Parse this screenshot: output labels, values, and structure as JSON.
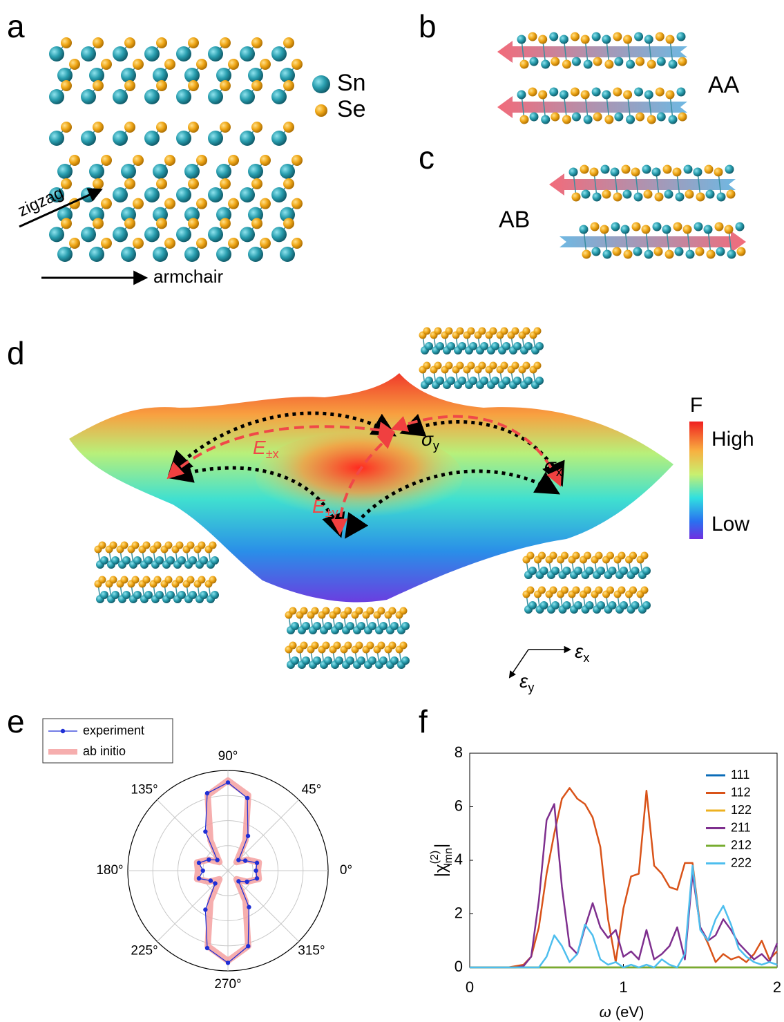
{
  "panels": {
    "labels": [
      "a",
      "b",
      "c",
      "d",
      "e",
      "f"
    ],
    "a": {
      "elements": [
        "Sn",
        "Se"
      ],
      "zigzag": "zigzag",
      "armchair": "armchair"
    },
    "b": {
      "stacking": "AA"
    },
    "c": {
      "stacking": "AB"
    },
    "d": {
      "colorbar_title": "F",
      "high": "High",
      "low": "Low",
      "E_x": {
        "symbol": "E",
        "sub": "±x"
      },
      "E_y": {
        "symbol": "E",
        "sub": "±y"
      },
      "sigma_y": {
        "symbol": "σ",
        "sub": "y"
      },
      "sigma_x": {
        "symbol": "σ",
        "sub": "x"
      },
      "eps_x": {
        "symbol": "ε",
        "sub": "x"
      },
      "eps_y": {
        "symbol": "ε",
        "sub": "y"
      }
    }
  },
  "chart_data": [
    {
      "type": "polar",
      "rlim": [
        0,
        1
      ],
      "thetaticks": [
        {
          "value": 0,
          "label": "0°"
        },
        {
          "value": 45,
          "label": "45°"
        },
        {
          "value": 90,
          "label": "90°"
        },
        {
          "value": 135,
          "label": "135°"
        },
        {
          "value": 180,
          "label": "180°"
        },
        {
          "value": 225,
          "label": "225°"
        },
        {
          "value": 270,
          "label": "270°"
        },
        {
          "value": 315,
          "label": "315°"
        }
      ],
      "series": [
        {
          "name": "experiment",
          "color": "#1f2fd6",
          "markers": true,
          "theta": [
            0,
            15,
            30,
            45,
            60,
            75,
            90,
            105,
            120,
            135,
            150,
            165,
            180,
            195,
            210,
            225,
            240,
            255,
            270,
            285,
            300,
            315,
            330,
            345
          ],
          "r": [
            0.28,
            0.3,
            0.2,
            0.15,
            0.4,
            0.75,
            0.88,
            0.8,
            0.45,
            0.15,
            0.22,
            0.3,
            0.25,
            0.3,
            0.2,
            0.18,
            0.45,
            0.8,
            0.92,
            0.78,
            0.42,
            0.15,
            0.22,
            0.3
          ]
        },
        {
          "name": "ab initio",
          "color": "#f4a0a0",
          "markers": false,
          "theta": [
            0,
            15,
            30,
            45,
            60,
            75,
            90,
            105,
            120,
            135,
            150,
            165,
            180,
            195,
            210,
            225,
            240,
            255,
            270,
            285,
            300,
            315,
            330,
            345
          ],
          "r": [
            0.3,
            0.32,
            0.22,
            0.12,
            0.35,
            0.78,
            0.9,
            0.78,
            0.35,
            0.12,
            0.22,
            0.32,
            0.3,
            0.32,
            0.22,
            0.12,
            0.35,
            0.78,
            0.9,
            0.78,
            0.35,
            0.12,
            0.22,
            0.32
          ]
        }
      ]
    },
    {
      "type": "line",
      "xlabel": {
        "symbol": "ω",
        "unit": "(eV)"
      },
      "ylabel": {
        "base": "|χ",
        "sup": "(2)",
        "sub": "lmn",
        "end": "|"
      },
      "xlim": [
        0,
        2
      ],
      "xticks": [
        0,
        1,
        2
      ],
      "ylim": [
        0,
        8
      ],
      "yticks": [
        0,
        2,
        4,
        6,
        8
      ],
      "x": [
        0,
        0.05,
        0.1,
        0.15,
        0.2,
        0.25,
        0.3,
        0.35,
        0.4,
        0.45,
        0.5,
        0.55,
        0.6,
        0.65,
        0.7,
        0.75,
        0.8,
        0.85,
        0.9,
        0.95,
        1,
        1.05,
        1.1,
        1.15,
        1.2,
        1.25,
        1.3,
        1.35,
        1.4,
        1.45,
        1.5,
        1.55,
        1.6,
        1.65,
        1.7,
        1.75,
        1.8,
        1.85,
        1.9,
        1.95,
        2
      ],
      "series": [
        {
          "name": "111",
          "color": "#0b6cb8",
          "values": [
            0,
            0,
            0,
            0,
            0,
            0,
            0,
            0,
            0,
            0,
            0,
            0,
            0,
            0,
            0,
            0,
            0,
            0,
            0,
            0,
            0,
            0,
            0,
            0,
            0,
            0,
            0,
            0,
            0,
            0,
            0,
            0,
            0,
            0,
            0,
            0,
            0,
            0,
            0,
            0,
            0
          ]
        },
        {
          "name": "112",
          "color": "#d95319",
          "values": [
            0,
            0,
            0,
            0,
            0,
            0,
            0.05,
            0.1,
            0.4,
            1.5,
            3.5,
            5,
            6.3,
            6.7,
            6.3,
            6.1,
            5.6,
            4.5,
            1.8,
            0.2,
            2.2,
            3.4,
            3.5,
            6.6,
            3.8,
            3.5,
            3,
            2.9,
            3.9,
            3.9,
            1.5,
            0.9,
            0.2,
            0.5,
            0.3,
            0.4,
            0.2,
            0.5,
            1,
            0.3,
            0.6
          ]
        },
        {
          "name": "122",
          "color": "#edb120",
          "values": [
            0,
            0,
            0,
            0,
            0,
            0,
            0,
            0,
            0,
            0,
            0,
            0,
            0,
            0,
            0,
            0,
            0,
            0,
            0,
            0,
            0,
            0,
            0,
            0,
            0,
            0,
            0,
            0,
            0,
            0,
            0,
            0,
            0,
            0,
            0,
            0,
            0,
            0,
            0,
            0,
            0
          ]
        },
        {
          "name": "211",
          "color": "#7e2f8e",
          "values": [
            0,
            0,
            0,
            0,
            0,
            0,
            0,
            0.05,
            0.4,
            2.5,
            5.5,
            6.1,
            3,
            0.8,
            0.5,
            1.5,
            2.4,
            1.5,
            1.1,
            1.4,
            0.4,
            0.6,
            0.3,
            1.4,
            0.3,
            0.5,
            0.8,
            1.5,
            0.3,
            3.5,
            1.5,
            1,
            1.2,
            1.8,
            1.4,
            0.9,
            0.6,
            0.3,
            0.5,
            0.2,
            0.9
          ]
        },
        {
          "name": "212",
          "color": "#77ac30",
          "values": [
            0,
            0,
            0,
            0,
            0,
            0,
            0,
            0,
            0,
            0,
            0,
            0,
            0,
            0,
            0,
            0,
            0,
            0,
            0,
            0,
            0,
            0,
            0,
            0,
            0,
            0,
            0,
            0,
            0,
            0,
            0,
            0,
            0,
            0,
            0,
            0,
            0,
            0,
            0,
            0,
            0
          ]
        },
        {
          "name": "222",
          "color": "#4dbeee",
          "values": [
            0,
            0,
            0,
            0,
            0,
            0,
            0,
            0,
            0,
            0,
            0.4,
            1.2,
            0.8,
            0.2,
            0.5,
            1.6,
            1.2,
            0.3,
            0.1,
            0.2,
            0,
            0.1,
            0,
            0.1,
            0,
            0.3,
            0.1,
            0,
            0.5,
            3.8,
            1.4,
            1,
            1.8,
            2.3,
            1.6,
            0.7,
            0.4,
            0.2,
            0.1,
            0.2,
            0.1
          ]
        }
      ]
    }
  ]
}
